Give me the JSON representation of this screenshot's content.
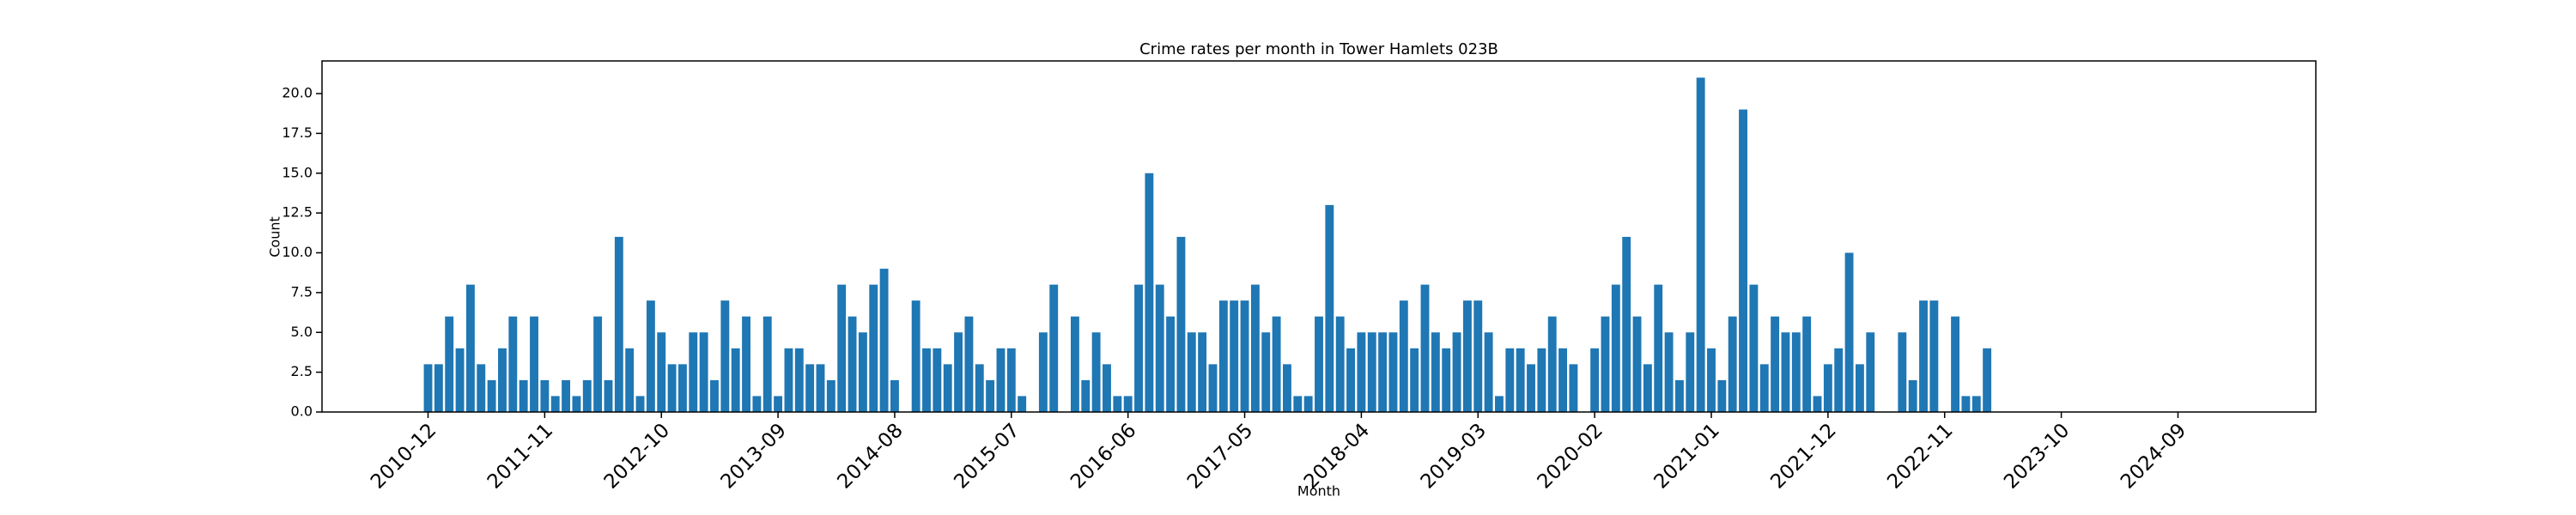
{
  "chart_data": {
    "type": "bar",
    "title": "Crime rates per month in Tower Hamlets 023B",
    "xlabel": "Month",
    "ylabel": "Count",
    "color": "#1f77b4",
    "x": [
      "2010-12",
      "2011-01",
      "2011-02",
      "2011-03",
      "2011-04",
      "2011-05",
      "2011-06",
      "2011-07",
      "2011-08",
      "2011-09",
      "2011-10",
      "2011-11",
      "2011-12",
      "2012-01",
      "2012-02",
      "2012-03",
      "2012-04",
      "2012-05",
      "2012-06",
      "2012-07",
      "2012-08",
      "2012-09",
      "2012-10",
      "2012-11",
      "2012-12",
      "2013-01",
      "2013-02",
      "2013-03",
      "2013-04",
      "2013-05",
      "2013-06",
      "2013-07",
      "2013-08",
      "2013-09",
      "2013-10",
      "2013-11",
      "2013-12",
      "2014-01",
      "2014-02",
      "2014-03",
      "2014-04",
      "2014-05",
      "2014-06",
      "2014-07",
      "2014-08",
      "2014-09",
      "2014-10",
      "2014-11",
      "2014-12",
      "2015-01",
      "2015-02",
      "2015-03",
      "2015-04",
      "2015-05",
      "2015-06",
      "2015-07",
      "2015-08",
      "2015-09",
      "2015-10",
      "2015-11",
      "2015-12",
      "2016-01",
      "2016-02",
      "2016-03",
      "2016-04",
      "2016-05",
      "2016-06",
      "2016-07",
      "2016-08",
      "2016-09",
      "2016-10",
      "2016-11",
      "2016-12",
      "2017-01",
      "2017-02",
      "2017-03",
      "2017-04",
      "2017-05",
      "2017-06",
      "2017-07",
      "2017-08",
      "2017-09",
      "2017-10",
      "2017-11",
      "2017-12",
      "2018-01",
      "2018-02",
      "2018-03",
      "2018-04",
      "2018-05",
      "2018-06",
      "2018-07",
      "2018-08",
      "2018-09",
      "2018-10",
      "2018-11",
      "2018-12",
      "2019-01",
      "2019-02",
      "2019-03",
      "2019-04",
      "2019-05",
      "2019-06",
      "2019-07",
      "2019-08",
      "2019-09",
      "2019-10",
      "2019-11",
      "2019-12",
      "2020-01",
      "2020-02",
      "2020-03",
      "2020-04",
      "2020-05",
      "2020-06",
      "2020-07",
      "2020-08",
      "2020-09",
      "2020-10",
      "2020-11",
      "2020-12",
      "2021-01",
      "2021-02",
      "2021-03",
      "2021-04",
      "2021-05",
      "2021-06",
      "2021-07",
      "2021-08",
      "2021-09",
      "2021-10",
      "2021-11",
      "2021-12",
      "2022-01",
      "2022-02",
      "2022-03",
      "2022-04",
      "2022-05",
      "2022-06",
      "2022-07",
      "2022-08",
      "2022-09",
      "2022-10",
      "2022-11",
      "2022-12",
      "2023-01",
      "2023-02",
      "2023-03"
    ],
    "values": [
      3,
      3,
      6,
      4,
      8,
      3,
      2,
      4,
      6,
      2,
      6,
      2,
      1,
      2,
      1,
      2,
      6,
      2,
      11,
      4,
      1,
      7,
      5,
      3,
      3,
      5,
      5,
      2,
      7,
      4,
      6,
      1,
      6,
      1,
      4,
      4,
      3,
      3,
      2,
      8,
      6,
      5,
      8,
      9,
      2,
      0,
      7,
      4,
      4,
      3,
      5,
      6,
      3,
      2,
      4,
      4,
      1,
      0,
      5,
      8,
      0,
      6,
      2,
      5,
      3,
      1,
      1,
      8,
      15,
      8,
      6,
      11,
      5,
      5,
      3,
      7,
      7,
      7,
      8,
      5,
      6,
      3,
      1,
      1,
      6,
      13,
      6,
      4,
      5,
      5,
      5,
      5,
      7,
      4,
      8,
      5,
      4,
      5,
      7,
      7,
      5,
      1,
      4,
      4,
      3,
      4,
      6,
      4,
      3,
      0,
      4,
      6,
      8,
      11,
      6,
      3,
      8,
      5,
      2,
      5,
      21,
      4,
      2,
      6,
      19,
      8,
      3,
      6,
      5,
      5,
      6,
      1,
      3,
      4,
      10,
      3,
      5,
      0,
      0,
      5,
      2,
      7,
      7,
      0,
      6,
      1,
      1,
      4
    ],
    "xlim": [
      "2010-02",
      "2025-10"
    ],
    "xticks": [
      "2010-12",
      "2011-11",
      "2012-10",
      "2013-09",
      "2014-08",
      "2015-07",
      "2016-06",
      "2017-05",
      "2018-04",
      "2019-03",
      "2020-02",
      "2021-01",
      "2021-12",
      "2022-11",
      "2023-10",
      "2024-09"
    ],
    "ylim": [
      0,
      22.05
    ],
    "yticks": [
      {
        "value": 0,
        "label": "0.0"
      },
      {
        "value": 2.5,
        "label": "2.5"
      },
      {
        "value": 5,
        "label": "5.0"
      },
      {
        "value": 7.5,
        "label": "7.5"
      },
      {
        "value": 10,
        "label": "10.0"
      },
      {
        "value": 12.5,
        "label": "12.5"
      },
      {
        "value": 15,
        "label": "15.0"
      },
      {
        "value": 17.5,
        "label": "17.5"
      },
      {
        "value": 20,
        "label": "20.0"
      }
    ]
  }
}
